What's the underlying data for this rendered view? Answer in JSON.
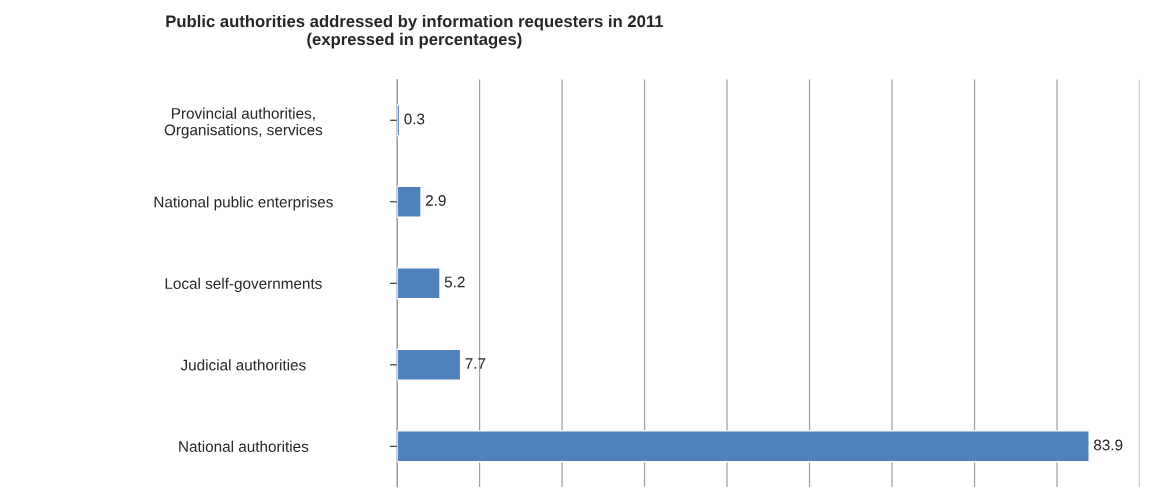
{
  "chart_data": {
    "type": "bar",
    "orientation": "horizontal",
    "title": "Public authorities addressed by information requesters in 2011\n(expressed in percentages)",
    "categories": [
      "Provincial authorities,\nOrganisations, services",
      "National public enterprises",
      "Local self-governments",
      "Judicial authorities",
      "National authorities"
    ],
    "values": [
      0.3,
      2.9,
      5.2,
      7.7,
      83.9
    ],
    "color": "#4f81bd",
    "data_labels": true,
    "xlim": [
      0,
      90
    ],
    "xticks": [
      {
        "value": 0,
        "label": null
      },
      {
        "value": 10,
        "label": null
      },
      {
        "value": 20,
        "label": null
      },
      {
        "value": 30,
        "label": null
      },
      {
        "value": 40,
        "label": null
      },
      {
        "value": 50,
        "label": null
      },
      {
        "value": 60,
        "label": null
      },
      {
        "value": 70,
        "label": null
      },
      {
        "value": 80,
        "label": null
      },
      {
        "value": 90,
        "label": null
      }
    ],
    "grid": "x",
    "tick_labels": "y",
    "legend": false
  }
}
